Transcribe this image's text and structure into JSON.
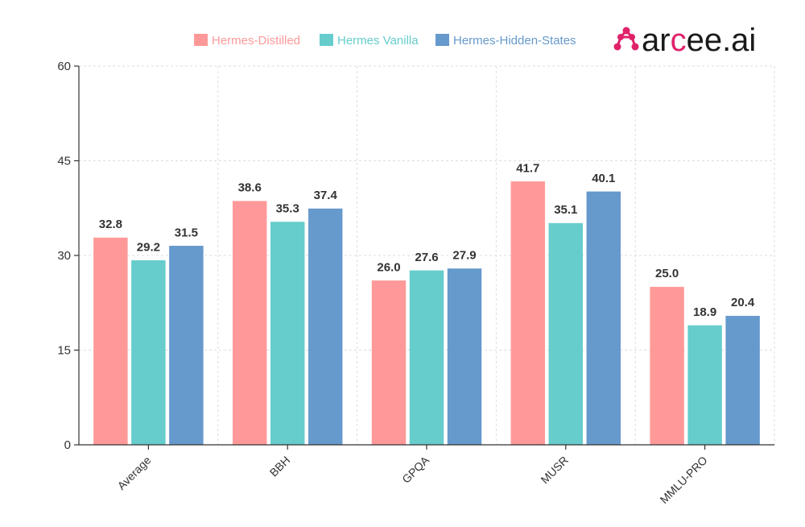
{
  "chart_data": {
    "type": "bar",
    "categories": [
      "Average",
      "BBH",
      "GPQA",
      "MUSR",
      "MMLU-PRO"
    ],
    "series": [
      {
        "name": "Hermes-Distilled",
        "color": "#ff9999",
        "values": [
          32.8,
          38.6,
          26.0,
          41.7,
          25.0
        ]
      },
      {
        "name": "Hermes Vanilla",
        "color": "#66cccc",
        "values": [
          29.2,
          35.3,
          27.6,
          35.1,
          18.9
        ]
      },
      {
        "name": "Hermes-Hidden-States",
        "color": "#6699cc",
        "values": [
          31.5,
          37.4,
          27.9,
          40.1,
          20.4
        ]
      }
    ],
    "yticks": [
      0,
      15,
      30,
      45,
      60
    ],
    "ylim": [
      0,
      60
    ],
    "grid": true,
    "legend_position": "top"
  },
  "logo": {
    "prefix": "ar",
    "accent": "c",
    "suffix": "ee.ai",
    "accent_color": "#e0226b",
    "text_color": "#1a1a1a"
  }
}
